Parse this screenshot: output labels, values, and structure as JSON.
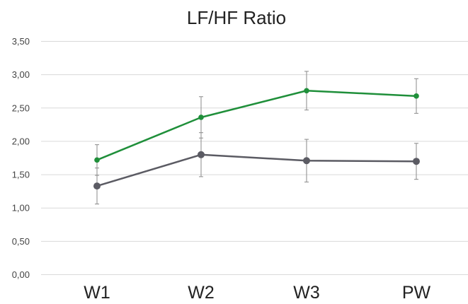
{
  "chart_data": {
    "type": "line",
    "title": "LF/HF Ratio",
    "xlabel": "",
    "ylabel": "",
    "categories": [
      "W1",
      "W2",
      "W3",
      "PW"
    ],
    "yticks": [
      "0,00",
      "0,50",
      "1,00",
      "1,50",
      "2,00",
      "2,50",
      "3,00",
      "3,50"
    ],
    "ylim": [
      0,
      3.5
    ],
    "grid": true,
    "legend": "none",
    "series": [
      {
        "color": "#1f8f3a",
        "values": [
          1.72,
          2.36,
          2.76,
          2.68
        ],
        "error": [
          0.23,
          0.31,
          0.29,
          0.26
        ]
      },
      {
        "color": "#5b5b63",
        "values": [
          1.33,
          1.8,
          1.71,
          1.7
        ],
        "error": [
          0.27,
          0.33,
          0.32,
          0.27
        ]
      }
    ]
  }
}
